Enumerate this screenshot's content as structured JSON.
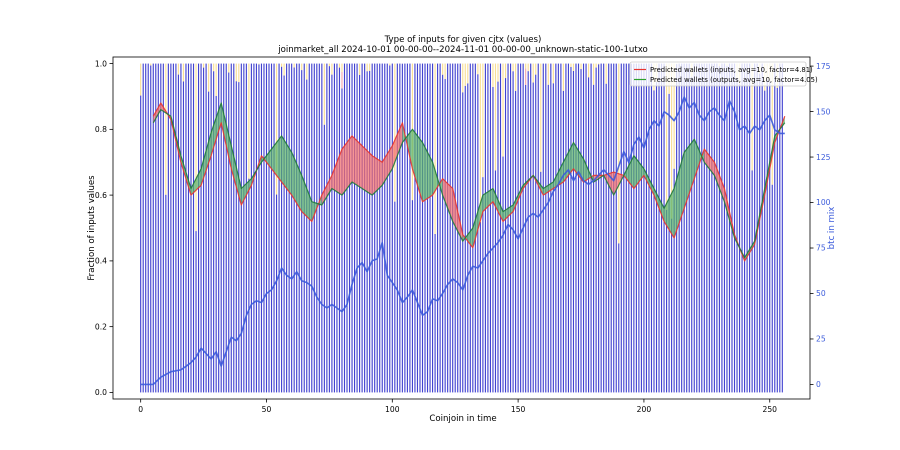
{
  "chart_data": {
    "type": "line",
    "title": "Type of inputs for given cjtx (values)",
    "subtitle": "joinmarket_all 2024-10-01 00-00-00--2024-11-01 00-00-00_unknown-static-100-1utxo",
    "xlabel": "Coinjoin in time",
    "ylabel": "Fraction of inputs values",
    "y2label": "btc in mix",
    "xlim": [
      -11,
      266
    ],
    "ylim": [
      -0.02,
      1.02
    ],
    "y2lim": [
      -8,
      180
    ],
    "xticks": [
      0,
      50,
      100,
      150,
      200,
      250
    ],
    "yticks": [
      "0.0",
      "0.2",
      "0.4",
      "0.6",
      "0.8",
      "1.0"
    ],
    "y2ticks": [
      0,
      25,
      50,
      75,
      100,
      125,
      150,
      175
    ],
    "legend_position": "top-right",
    "colors": {
      "inputs": "#e8342f",
      "outputs": "#2ca02c",
      "btc": "#3b5bdb",
      "bars_blue": "#2121c8",
      "bars_yellow": "#f5d06a",
      "bars_pink": "#f4a7ad"
    },
    "n_bars": 256,
    "series": [
      {
        "name": "Predicted wallets (inputs, avg=10, factor=4.81)",
        "x": [
          5,
          8,
          12,
          16,
          20,
          24,
          28,
          32,
          36,
          40,
          44,
          48,
          52,
          56,
          60,
          64,
          68,
          72,
          76,
          80,
          84,
          88,
          92,
          96,
          100,
          104,
          108,
          112,
          116,
          120,
          124,
          128,
          132,
          136,
          140,
          144,
          148,
          152,
          156,
          160,
          164,
          168,
          172,
          176,
          180,
          184,
          188,
          192,
          196,
          200,
          204,
          208,
          212,
          216,
          220,
          224,
          228,
          232,
          236,
          240,
          244,
          248,
          252,
          256
        ],
        "values": [
          0.84,
          0.88,
          0.83,
          0.7,
          0.6,
          0.63,
          0.72,
          0.82,
          0.68,
          0.57,
          0.63,
          0.72,
          0.68,
          0.64,
          0.6,
          0.55,
          0.52,
          0.6,
          0.66,
          0.74,
          0.78,
          0.75,
          0.72,
          0.7,
          0.75,
          0.82,
          0.68,
          0.58,
          0.6,
          0.65,
          0.62,
          0.48,
          0.44,
          0.55,
          0.58,
          0.52,
          0.55,
          0.62,
          0.66,
          0.6,
          0.62,
          0.64,
          0.68,
          0.64,
          0.66,
          0.66,
          0.67,
          0.66,
          0.62,
          0.66,
          0.6,
          0.52,
          0.47,
          0.56,
          0.65,
          0.74,
          0.7,
          0.62,
          0.48,
          0.4,
          0.45,
          0.6,
          0.76,
          0.84
        ]
      },
      {
        "name": "Predicted wallets (outputs, avg=10, factor=4.05)",
        "x": [
          5,
          8,
          12,
          16,
          20,
          24,
          28,
          32,
          36,
          40,
          44,
          48,
          52,
          56,
          60,
          64,
          68,
          72,
          76,
          80,
          84,
          88,
          92,
          96,
          100,
          104,
          108,
          112,
          116,
          120,
          124,
          128,
          132,
          136,
          140,
          144,
          148,
          152,
          156,
          160,
          164,
          168,
          172,
          176,
          180,
          184,
          188,
          192,
          196,
          200,
          204,
          208,
          212,
          216,
          220,
          224,
          228,
          232,
          236,
          240,
          244,
          248,
          252,
          256
        ],
        "values": [
          0.82,
          0.86,
          0.84,
          0.72,
          0.62,
          0.68,
          0.79,
          0.88,
          0.75,
          0.62,
          0.65,
          0.7,
          0.74,
          0.78,
          0.73,
          0.66,
          0.58,
          0.57,
          0.62,
          0.6,
          0.64,
          0.62,
          0.6,
          0.63,
          0.68,
          0.76,
          0.8,
          0.76,
          0.7,
          0.6,
          0.52,
          0.46,
          0.5,
          0.6,
          0.62,
          0.55,
          0.57,
          0.63,
          0.66,
          0.62,
          0.64,
          0.7,
          0.76,
          0.71,
          0.64,
          0.66,
          0.6,
          0.66,
          0.72,
          0.68,
          0.62,
          0.56,
          0.62,
          0.73,
          0.77,
          0.7,
          0.66,
          0.58,
          0.47,
          0.41,
          0.46,
          0.62,
          0.78,
          0.82
        ]
      },
      {
        "name": "btc in mix",
        "axis": "right",
        "x": [
          0,
          5,
          8,
          12,
          16,
          18,
          20,
          22,
          24,
          26,
          28,
          30,
          32,
          34,
          36,
          38,
          40,
          42,
          44,
          46,
          48,
          50,
          52,
          54,
          56,
          58,
          60,
          62,
          64,
          66,
          68,
          70,
          72,
          74,
          76,
          78,
          80,
          82,
          84,
          86,
          88,
          90,
          92,
          94,
          96,
          98,
          100,
          102,
          104,
          106,
          108,
          110,
          112,
          114,
          116,
          118,
          120,
          122,
          124,
          126,
          128,
          130,
          132,
          134,
          136,
          138,
          140,
          142,
          144,
          146,
          148,
          150,
          152,
          154,
          156,
          158,
          160,
          162,
          164,
          166,
          168,
          170,
          172,
          174,
          176,
          178,
          180,
          182,
          184,
          186,
          188,
          190,
          192,
          194,
          196,
          198,
          200,
          202,
          204,
          206,
          208,
          210,
          212,
          214,
          216,
          218,
          220,
          222,
          224,
          226,
          228,
          230,
          232,
          234,
          236,
          238,
          240,
          242,
          244,
          246,
          248,
          250,
          252,
          254,
          256
        ],
        "values": [
          0,
          0,
          4,
          7,
          8,
          10,
          12,
          15,
          20,
          17,
          14,
          18,
          10,
          18,
          26,
          24,
          28,
          38,
          44,
          46,
          45,
          50,
          52,
          57,
          64,
          60,
          58,
          62,
          57,
          56,
          54,
          48,
          44,
          42,
          44,
          42,
          40,
          44,
          55,
          64,
          67,
          62,
          68,
          69,
          78,
          60,
          56,
          52,
          45,
          48,
          52,
          45,
          38,
          40,
          47,
          46,
          50,
          55,
          58,
          56,
          52,
          60,
          65,
          64,
          68,
          72,
          75,
          78,
          82,
          88,
          85,
          80,
          86,
          92,
          94,
          92,
          96,
          100,
          106,
          110,
          115,
          118,
          112,
          117,
          112,
          110,
          112,
          115,
          118,
          115,
          112,
          120,
          128,
          122,
          132,
          136,
          130,
          140,
          145,
          142,
          150,
          148,
          145,
          150,
          158,
          152,
          155,
          148,
          145,
          150,
          152,
          148,
          145,
          156,
          150,
          140,
          142,
          138,
          142,
          140,
          145,
          148,
          140,
          138,
          138
        ]
      }
    ]
  }
}
